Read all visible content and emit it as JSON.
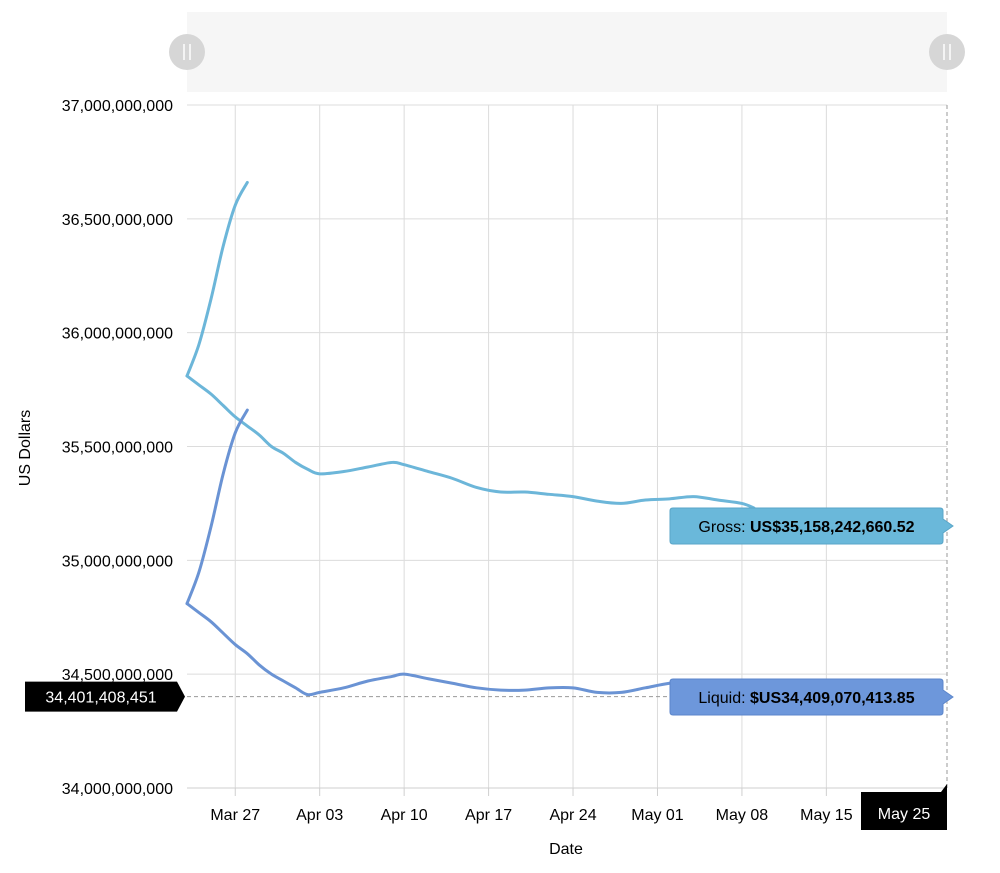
{
  "chart_data": {
    "type": "line",
    "ylabel": "US Dollars",
    "xlabel": "Date",
    "ylim": [
      34000000000,
      37000000000
    ],
    "xlim": [
      "2020-03-23",
      "2020-05-25"
    ],
    "y_ticks": [
      34000000000,
      34500000000,
      35000000000,
      35500000000,
      36000000000,
      36500000000,
      37000000000
    ],
    "y_tick_labels": [
      "34,000,000,000",
      "34,500,000,000",
      "35,000,000,000",
      "35,500,000,000",
      "36,000,000,000",
      "36,500,000,000",
      "37,000,000,000"
    ],
    "x_ticks": [
      "2020-03-27",
      "2020-04-03",
      "2020-04-10",
      "2020-04-17",
      "2020-04-24",
      "2020-05-01",
      "2020-05-08",
      "2020-05-15"
    ],
    "x_tick_labels": [
      "Mar 27",
      "Apr 03",
      "Apr 10",
      "Apr 17",
      "Apr 24",
      "May 01",
      "May 08",
      "May 15"
    ],
    "grid": true,
    "colors": {
      "gross": "#6cb6d9",
      "liquid": "#6a93d4",
      "tooltip_gross": "#6ab8da",
      "tooltip_liquid": "#6d97db",
      "crosshair_label": "#000000"
    },
    "series": [
      {
        "key": "gross",
        "x": [
          "2020-03-23",
          "2020-03-24",
          "2020-03-25",
          "2020-03-26",
          "2020-03-27",
          "2020-03-28",
          "2020-03-29",
          "2020-03-30",
          "2020-03-31",
          "2020-04-01",
          "2020-04-02",
          "2020-04-03",
          "2020-04-05",
          "2020-04-07",
          "2020-04-09",
          "2020-04-10",
          "2020-04-12",
          "2020-04-14",
          "2020-04-16",
          "2020-04-18",
          "2020-04-20",
          "2020-04-22",
          "2020-04-24",
          "2020-04-26",
          "2020-04-28",
          "2020-04-30",
          "2020-05-02",
          "2020-05-04",
          "2020-05-06",
          "2020-05-08",
          "2020-05-09"
        ],
        "y": [
          35810000000,
          35770000000,
          35730000000,
          35680000000,
          35630000000,
          35590000000,
          35550000000,
          35500000000,
          35470000000,
          35430000000,
          35400000000,
          35380000000,
          35390000000,
          35410000000,
          35430000000,
          35420000000,
          35390000000,
          35360000000,
          35320000000,
          35300000000,
          35300000000,
          35290000000,
          35280000000,
          35260000000,
          35250000000,
          35265000000,
          35270000000,
          35280000000,
          35265000000,
          35250000000,
          35230000000
        ]
      },
      {
        "key": "gross-spike",
        "x": [
          "2020-03-23",
          "2020-03-24",
          "2020-03-25",
          "2020-03-26",
          "2020-03-27",
          "2020-03-28"
        ],
        "y": [
          35810000000,
          35950000000,
          36150000000,
          36380000000,
          36560000000,
          36660000000
        ]
      },
      {
        "key": "liquid",
        "x": [
          "2020-03-23",
          "2020-03-24",
          "2020-03-25",
          "2020-03-26",
          "2020-03-27",
          "2020-03-28",
          "2020-03-29",
          "2020-03-30",
          "2020-03-31",
          "2020-04-01",
          "2020-04-02",
          "2020-04-03",
          "2020-04-05",
          "2020-04-07",
          "2020-04-09",
          "2020-04-10",
          "2020-04-12",
          "2020-04-14",
          "2020-04-16",
          "2020-04-18",
          "2020-04-20",
          "2020-04-22",
          "2020-04-24",
          "2020-04-26",
          "2020-04-28",
          "2020-04-30",
          "2020-05-02",
          "2020-05-04",
          "2020-05-05"
        ],
        "y": [
          34810000000,
          34770000000,
          34730000000,
          34680000000,
          34630000000,
          34590000000,
          34540000000,
          34500000000,
          34470000000,
          34440000000,
          34410000000,
          34420000000,
          34440000000,
          34470000000,
          34490000000,
          34500000000,
          34480000000,
          34460000000,
          34440000000,
          34430000000,
          34430000000,
          34440000000,
          34440000000,
          34420000000,
          34420000000,
          34440000000,
          34460000000,
          34470000000,
          34460000000
        ]
      },
      {
        "key": "liquid-spike",
        "x": [
          "2020-03-23",
          "2020-03-24",
          "2020-03-25",
          "2020-03-26",
          "2020-03-27",
          "2020-03-28"
        ],
        "y": [
          34810000000,
          34950000000,
          35150000000,
          35380000000,
          35560000000,
          35660000000
        ]
      }
    ],
    "tooltip_gross": {
      "label": "Gross: ",
      "value": "US$35,158,242,660.52",
      "y": 35158242660.52
    },
    "tooltip_liquid": {
      "label": "Liquid: ",
      "value": "$US34,409,070,413.85",
      "y": 34409070413.85
    },
    "crosshair": {
      "y_label": "34,401,408,451",
      "y": 34401408451,
      "x_label": "May 25",
      "x": "2020-05-25"
    }
  }
}
